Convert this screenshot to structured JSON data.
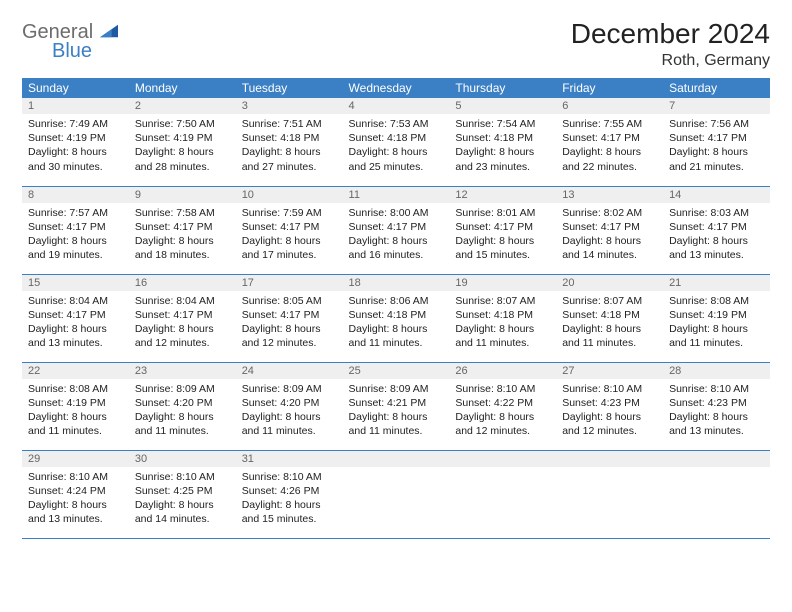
{
  "logo": {
    "text1": "General",
    "text2": "Blue"
  },
  "title": "December 2024",
  "location": "Roth, Germany",
  "colors": {
    "header_bg": "#3b7fc4",
    "header_fg": "#ffffff",
    "daynum_bg": "#efefef",
    "daynum_fg": "#666666",
    "rule": "#3b7fc4",
    "logo_grey": "#6c6c6c",
    "logo_blue": "#3b7fc4"
  },
  "typography": {
    "title_fontsize": 28,
    "location_fontsize": 16,
    "dayheader_fontsize": 12,
    "daynum_fontsize": 11,
    "body_fontsize": 10.5
  },
  "day_headers": [
    "Sunday",
    "Monday",
    "Tuesday",
    "Wednesday",
    "Thursday",
    "Friday",
    "Saturday"
  ],
  "weeks": [
    [
      {
        "n": "1",
        "sunrise": "7:49 AM",
        "sunset": "4:19 PM",
        "daylight": "8 hours and 30 minutes."
      },
      {
        "n": "2",
        "sunrise": "7:50 AM",
        "sunset": "4:19 PM",
        "daylight": "8 hours and 28 minutes."
      },
      {
        "n": "3",
        "sunrise": "7:51 AM",
        "sunset": "4:18 PM",
        "daylight": "8 hours and 27 minutes."
      },
      {
        "n": "4",
        "sunrise": "7:53 AM",
        "sunset": "4:18 PM",
        "daylight": "8 hours and 25 minutes."
      },
      {
        "n": "5",
        "sunrise": "7:54 AM",
        "sunset": "4:18 PM",
        "daylight": "8 hours and 23 minutes."
      },
      {
        "n": "6",
        "sunrise": "7:55 AM",
        "sunset": "4:17 PM",
        "daylight": "8 hours and 22 minutes."
      },
      {
        "n": "7",
        "sunrise": "7:56 AM",
        "sunset": "4:17 PM",
        "daylight": "8 hours and 21 minutes."
      }
    ],
    [
      {
        "n": "8",
        "sunrise": "7:57 AM",
        "sunset": "4:17 PM",
        "daylight": "8 hours and 19 minutes."
      },
      {
        "n": "9",
        "sunrise": "7:58 AM",
        "sunset": "4:17 PM",
        "daylight": "8 hours and 18 minutes."
      },
      {
        "n": "10",
        "sunrise": "7:59 AM",
        "sunset": "4:17 PM",
        "daylight": "8 hours and 17 minutes."
      },
      {
        "n": "11",
        "sunrise": "8:00 AM",
        "sunset": "4:17 PM",
        "daylight": "8 hours and 16 minutes."
      },
      {
        "n": "12",
        "sunrise": "8:01 AM",
        "sunset": "4:17 PM",
        "daylight": "8 hours and 15 minutes."
      },
      {
        "n": "13",
        "sunrise": "8:02 AM",
        "sunset": "4:17 PM",
        "daylight": "8 hours and 14 minutes."
      },
      {
        "n": "14",
        "sunrise": "8:03 AM",
        "sunset": "4:17 PM",
        "daylight": "8 hours and 13 minutes."
      }
    ],
    [
      {
        "n": "15",
        "sunrise": "8:04 AM",
        "sunset": "4:17 PM",
        "daylight": "8 hours and 13 minutes."
      },
      {
        "n": "16",
        "sunrise": "8:04 AM",
        "sunset": "4:17 PM",
        "daylight": "8 hours and 12 minutes."
      },
      {
        "n": "17",
        "sunrise": "8:05 AM",
        "sunset": "4:17 PM",
        "daylight": "8 hours and 12 minutes."
      },
      {
        "n": "18",
        "sunrise": "8:06 AM",
        "sunset": "4:18 PM",
        "daylight": "8 hours and 11 minutes."
      },
      {
        "n": "19",
        "sunrise": "8:07 AM",
        "sunset": "4:18 PM",
        "daylight": "8 hours and 11 minutes."
      },
      {
        "n": "20",
        "sunrise": "8:07 AM",
        "sunset": "4:18 PM",
        "daylight": "8 hours and 11 minutes."
      },
      {
        "n": "21",
        "sunrise": "8:08 AM",
        "sunset": "4:19 PM",
        "daylight": "8 hours and 11 minutes."
      }
    ],
    [
      {
        "n": "22",
        "sunrise": "8:08 AM",
        "sunset": "4:19 PM",
        "daylight": "8 hours and 11 minutes."
      },
      {
        "n": "23",
        "sunrise": "8:09 AM",
        "sunset": "4:20 PM",
        "daylight": "8 hours and 11 minutes."
      },
      {
        "n": "24",
        "sunrise": "8:09 AM",
        "sunset": "4:20 PM",
        "daylight": "8 hours and 11 minutes."
      },
      {
        "n": "25",
        "sunrise": "8:09 AM",
        "sunset": "4:21 PM",
        "daylight": "8 hours and 11 minutes."
      },
      {
        "n": "26",
        "sunrise": "8:10 AM",
        "sunset": "4:22 PM",
        "daylight": "8 hours and 12 minutes."
      },
      {
        "n": "27",
        "sunrise": "8:10 AM",
        "sunset": "4:23 PM",
        "daylight": "8 hours and 12 minutes."
      },
      {
        "n": "28",
        "sunrise": "8:10 AM",
        "sunset": "4:23 PM",
        "daylight": "8 hours and 13 minutes."
      }
    ],
    [
      {
        "n": "29",
        "sunrise": "8:10 AM",
        "sunset": "4:24 PM",
        "daylight": "8 hours and 13 minutes."
      },
      {
        "n": "30",
        "sunrise": "8:10 AM",
        "sunset": "4:25 PM",
        "daylight": "8 hours and 14 minutes."
      },
      {
        "n": "31",
        "sunrise": "8:10 AM",
        "sunset": "4:26 PM",
        "daylight": "8 hours and 15 minutes."
      },
      {
        "empty": true
      },
      {
        "empty": true
      },
      {
        "empty": true
      },
      {
        "empty": true
      }
    ]
  ],
  "labels": {
    "sunrise": "Sunrise:",
    "sunset": "Sunset:",
    "daylight": "Daylight:"
  }
}
